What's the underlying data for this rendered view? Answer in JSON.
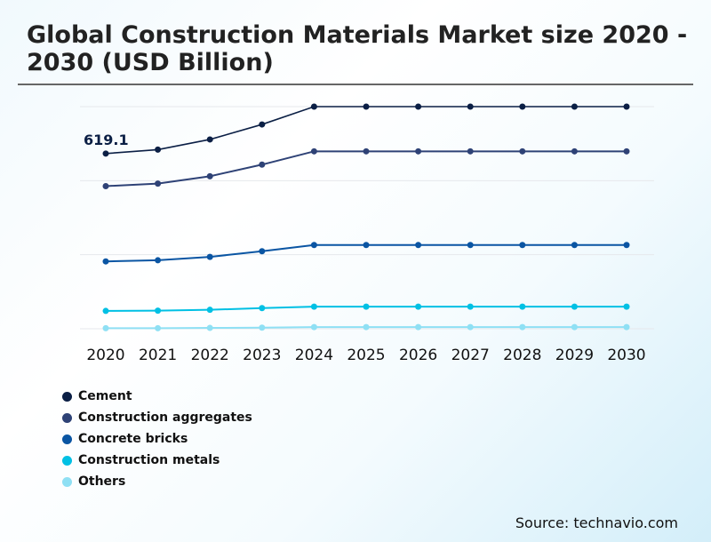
{
  "chart_data": {
    "type": "line",
    "title": "Global Construction Materials Market size 2020 - 2030 (USD Billion)",
    "xlabel": "",
    "ylabel": "",
    "categories": [
      "2020",
      "2021",
      "2022",
      "2023",
      "2024",
      "2025",
      "2026",
      "2027",
      "2028",
      "2029",
      "2030"
    ],
    "ylim": [
      0,
      785
    ],
    "grid": true,
    "legend_position": "bottom-left",
    "annotations": [
      {
        "series": "Cement",
        "x": "2020",
        "text": "619.1"
      }
    ],
    "series": [
      {
        "name": "Cement",
        "color": "#0b1f45",
        "values": [
          619.1,
          633,
          669,
          722,
          785,
          785,
          785,
          785,
          785,
          785,
          785
        ]
      },
      {
        "name": "Construction aggregates",
        "color": "#2e4276",
        "values": [
          504,
          513,
          539,
          580,
          627,
          627,
          627,
          627,
          627,
          627,
          627
        ]
      },
      {
        "name": "Concrete bricks",
        "color": "#0a55a3",
        "values": [
          238,
          242,
          254,
          274,
          296,
          296,
          296,
          296,
          296,
          296,
          296
        ]
      },
      {
        "name": "Construction metals",
        "color": "#00c0e4",
        "values": [
          63,
          64,
          67,
          73,
          78,
          78,
          78,
          78,
          78,
          78,
          78
        ]
      },
      {
        "name": "Others",
        "color": "#8fe0f4",
        "values": [
          2,
          2,
          3,
          4,
          6,
          6,
          6,
          6,
          6,
          6,
          6
        ]
      }
    ]
  },
  "source": "Source: technavio.com"
}
